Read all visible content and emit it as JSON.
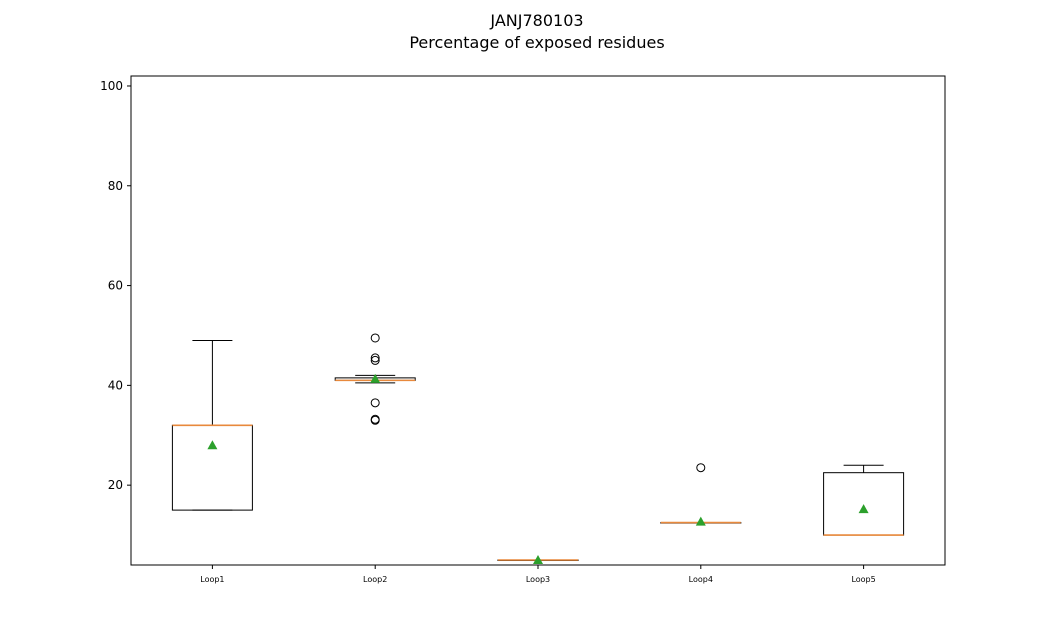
{
  "chart_data": {
    "type": "box",
    "title_line1": "JANJ780103",
    "title_line2": "Percentage of exposed residues",
    "xlabel": "",
    "ylabel": "",
    "categories": [
      "Loop1",
      "Loop2",
      "Loop3",
      "Loop4",
      "Loop5"
    ],
    "yticks": [
      20,
      40,
      60,
      80,
      100
    ],
    "ylim": [
      4,
      102
    ],
    "grid": false,
    "colors": {
      "box": "#000000",
      "median": "#e8893c",
      "mean": "#2ca02c",
      "outlier": "#000000"
    },
    "series": [
      {
        "category": "Loop1",
        "whisker_low": 15,
        "q1": 15,
        "median": 32,
        "q3": 32,
        "whisker_high": 49,
        "mean": 28,
        "outliers": []
      },
      {
        "category": "Loop2",
        "whisker_low": 40.5,
        "q1": 41,
        "median": 41,
        "q3": 41.5,
        "whisker_high": 42,
        "mean": 41.3,
        "outliers": [
          33,
          33.2,
          36.5,
          45,
          45.5,
          49.5
        ]
      },
      {
        "category": "Loop3",
        "whisker_low": 5,
        "q1": 5,
        "median": 5,
        "q3": 5,
        "whisker_high": 5,
        "mean": 5,
        "outliers": []
      },
      {
        "category": "Loop4",
        "whisker_low": 12.5,
        "q1": 12.5,
        "median": 12.5,
        "q3": 12.5,
        "whisker_high": 12.5,
        "mean": 12.7,
        "outliers": [
          23.5
        ]
      },
      {
        "category": "Loop5",
        "whisker_low": 10,
        "q1": 10,
        "median": 10,
        "q3": 22.5,
        "whisker_high": 24,
        "mean": 15.2,
        "outliers": []
      }
    ]
  }
}
